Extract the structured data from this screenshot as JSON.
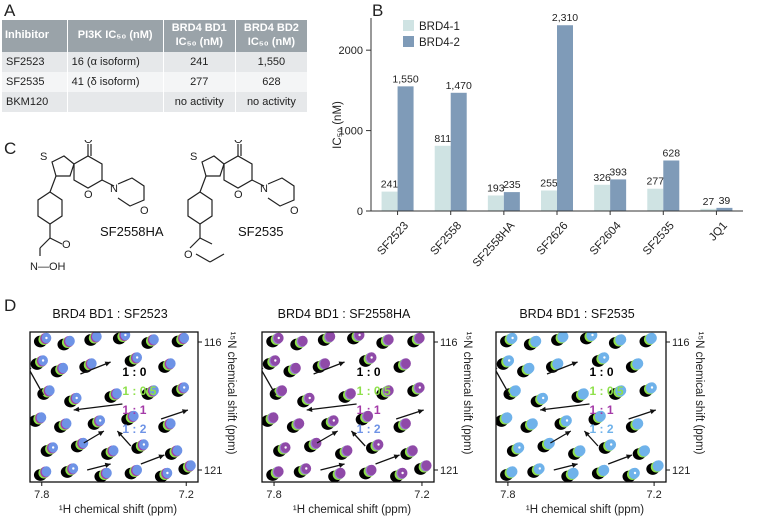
{
  "panels": {
    "A": "A",
    "B": "B",
    "C": "C",
    "D": "D"
  },
  "table": {
    "headers": [
      "Inhibitor",
      "PI3K IC₅₀ (nM)",
      "BRD4 BD1 IC₅₀ (nM)",
      "BRD4 BD2 IC₅₀ (nM)"
    ],
    "rows": [
      [
        "SF2523",
        "16 (α isoform)",
        "241",
        "1,550"
      ],
      [
        "SF2535",
        "41 (δ isoform)",
        "277",
        "628"
      ],
      [
        "BKM120",
        "",
        "no activity",
        "no activity"
      ]
    ]
  },
  "chart_data": {
    "type": "bar",
    "title": "",
    "xlabel": "",
    "ylabel": "IC₅₀ (nM)",
    "ylim": [
      0,
      2400
    ],
    "yticks": [
      0,
      1000,
      2000
    ],
    "legend_position": "top-left",
    "categories": [
      "SF2523",
      "SF2558",
      "SF2558HA",
      "SF2626",
      "SF2604",
      "SF2535",
      "JQ1"
    ],
    "series": [
      {
        "name": "BRD4-1",
        "color": "#cfe3e3",
        "values": [
          241,
          811,
          193,
          255,
          326,
          277,
          27
        ],
        "labels": [
          "241",
          "811",
          "193",
          "255",
          "326",
          "277",
          "27"
        ]
      },
      {
        "name": "BRD4-2",
        "color": "#7f9bb8",
        "values": [
          1550,
          1470,
          235,
          2310,
          393,
          628,
          39
        ],
        "labels": [
          "1,550",
          "1,470",
          "235",
          "2,310",
          "393",
          "628",
          "39"
        ]
      }
    ]
  },
  "structures": {
    "left_name": "SF2558HA",
    "right_name": "SF2535",
    "left_group": "N—OH"
  },
  "nmr": {
    "titles": [
      "BRD4 BD1 : SF2523",
      "BRD4 BD1 : SF2558HA",
      "BRD4 BD1 : SF2535"
    ],
    "ratios": [
      "1 : 0",
      "1 : 0.5",
      "1 : 1",
      "1 : 2"
    ],
    "colors": {
      "r0": "#000000",
      "r05": "#8ee04a",
      "r1_a": "#a43aa8",
      "r2_a": "#6e93e6",
      "r1_b": "#9b7bd0",
      "r2_b": "#8f4aa8",
      "r2_c": "#6fb2ea"
    },
    "x_ticks": [
      "7.8",
      "7.2"
    ],
    "y_ticks": [
      "116",
      "121"
    ],
    "x_label": "¹H chemical shift (ppm)",
    "y_label": "¹⁵N chemical shift (ppm)"
  }
}
